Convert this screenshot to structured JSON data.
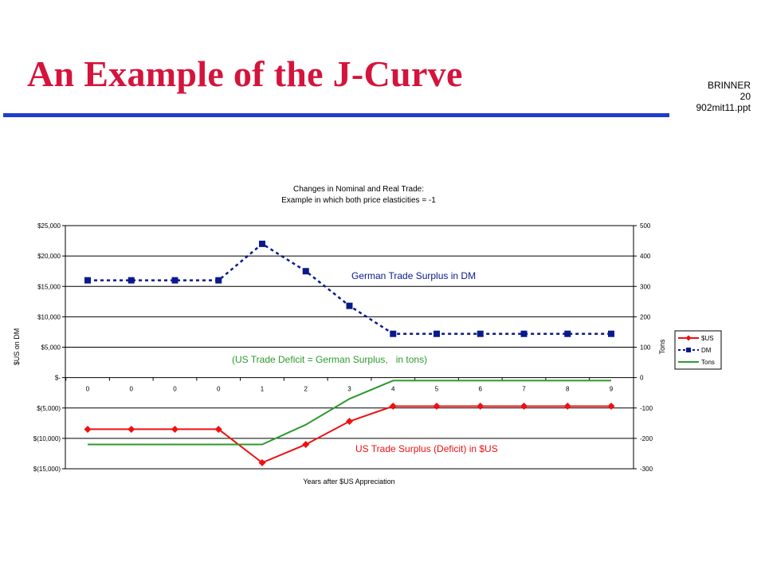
{
  "slide": {
    "title": "An Example of the J-Curve",
    "meta": [
      "BRINNER",
      "20",
      "902mit11.ppt"
    ]
  },
  "colors": {
    "title_red": "#d4143c",
    "rule_blue": "#1f3ccc",
    "usd_series": "#ee1111",
    "dm_series": "#0a1a8c",
    "tons_series": "#2e9a2e"
  },
  "chart_data": {
    "type": "line",
    "title": "Changes in Nominal and Real Trade:",
    "subtitle": "Example in which both price elasticities = -1",
    "xlabel": "Years after $US Appreciation",
    "ylabel_left": "$US on DM",
    "ylabel_right": "Tons",
    "categories": [
      "0",
      "0",
      "0",
      "0",
      "1",
      "2",
      "3",
      "4",
      "5",
      "6",
      "7",
      "8",
      "9"
    ],
    "ylim_left": [
      -15000,
      25000
    ],
    "ylim_right": [
      -300,
      500
    ],
    "yticks_left": [
      "$25,000",
      "$20,000",
      "$15,000",
      "$10,000",
      "$5,000",
      "$-",
      "$(5,000)",
      "$(10,000)",
      "$(15,000)"
    ],
    "yticks_right": [
      "500",
      "400",
      "300",
      "200",
      "100",
      "0",
      "-100",
      "-200",
      "-300"
    ],
    "grid": true,
    "legend_position": "right",
    "series": [
      {
        "name": "$US",
        "axis": "left",
        "style": "solid-diamond",
        "color": "#ee1111",
        "values": [
          -8500,
          -8500,
          -8500,
          -8500,
          -14000,
          -11000,
          -7200,
          -4700,
          -4700,
          -4700,
          -4700,
          -4700,
          -4700
        ]
      },
      {
        "name": "DM",
        "axis": "left",
        "style": "dashed-square",
        "color": "#0a1a8c",
        "values": [
          16000,
          16000,
          16000,
          16000,
          22000,
          17500,
          11800,
          7200,
          7200,
          7200,
          7200,
          7200,
          7200
        ]
      },
      {
        "name": "Tons",
        "axis": "right",
        "style": "solid",
        "color": "#2e9a2e",
        "values": [
          -220,
          -220,
          -220,
          -220,
          -220,
          -155,
          -70,
          -10,
          -10,
          -10,
          -10,
          -10,
          -10
        ]
      }
    ],
    "annotations": [
      {
        "text": "German Trade Surplus in DM",
        "color": "#0a1a8c"
      },
      {
        "text": "(US Trade Deficit = German Surplus,   in tons)",
        "color": "#2e9a2e"
      },
      {
        "text": "US Trade Surplus (Deficit) in $US",
        "color": "#ee1111"
      }
    ]
  }
}
